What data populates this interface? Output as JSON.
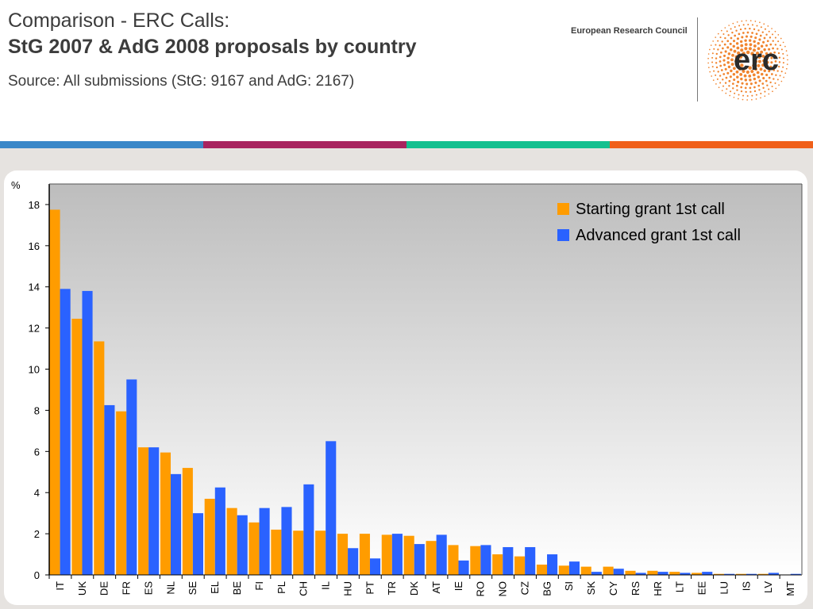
{
  "header": {
    "title_line1": "Comparison - ERC Calls:",
    "title_line2": "StG 2007 & AdG 2008 proposals by country",
    "subtitle": "Source: All submissions (StG: 9167 and AdG: 2167)",
    "organization": "European Research Council",
    "logo_text": "erc"
  },
  "colors": {
    "stripes": [
      "#3a87c8",
      "#a8245f",
      "#13c08f",
      "#f0601a"
    ],
    "starting": "#ff9c00",
    "advanced": "#2a62ff",
    "logo_orange": "#f07818"
  },
  "chart_data": {
    "type": "bar",
    "ylabel": "%",
    "ylim": [
      0,
      19
    ],
    "yticks": [
      0,
      2,
      4,
      6,
      8,
      10,
      12,
      14,
      16,
      18
    ],
    "legend_position": "top-right",
    "categories": [
      "IT",
      "UK",
      "DE",
      "FR",
      "ES",
      "NL",
      "SE",
      "EL",
      "BE",
      "FI",
      "PL",
      "CH",
      "IL",
      "HU",
      "PT",
      "TR",
      "DK",
      "AT",
      "IE",
      "RO",
      "NO",
      "CZ",
      "BG",
      "SI",
      "SK",
      "CY",
      "RS",
      "HR",
      "LT",
      "EE",
      "LU",
      "IS",
      "LV",
      "MT"
    ],
    "series": [
      {
        "name": "Starting grant 1st call",
        "values": [
          17.75,
          12.45,
          11.35,
          7.95,
          6.2,
          5.95,
          5.2,
          3.7,
          3.25,
          2.55,
          2.2,
          2.15,
          2.15,
          2.0,
          2.0,
          1.95,
          1.9,
          1.65,
          1.45,
          1.4,
          1.0,
          0.9,
          0.5,
          0.45,
          0.4,
          0.4,
          0.2,
          0.2,
          0.15,
          0.1,
          0.05,
          0.05,
          0.05,
          0.0
        ]
      },
      {
        "name": "Advanced grant 1st call",
        "values": [
          13.9,
          13.8,
          8.25,
          9.5,
          6.2,
          4.9,
          3.0,
          4.25,
          2.9,
          3.25,
          3.3,
          4.4,
          6.5,
          1.3,
          0.8,
          2.0,
          1.5,
          1.95,
          0.7,
          1.45,
          1.35,
          1.35,
          1.0,
          0.65,
          0.15,
          0.3,
          0.1,
          0.15,
          0.1,
          0.15,
          0.05,
          0.05,
          0.1,
          0.05
        ]
      }
    ]
  }
}
